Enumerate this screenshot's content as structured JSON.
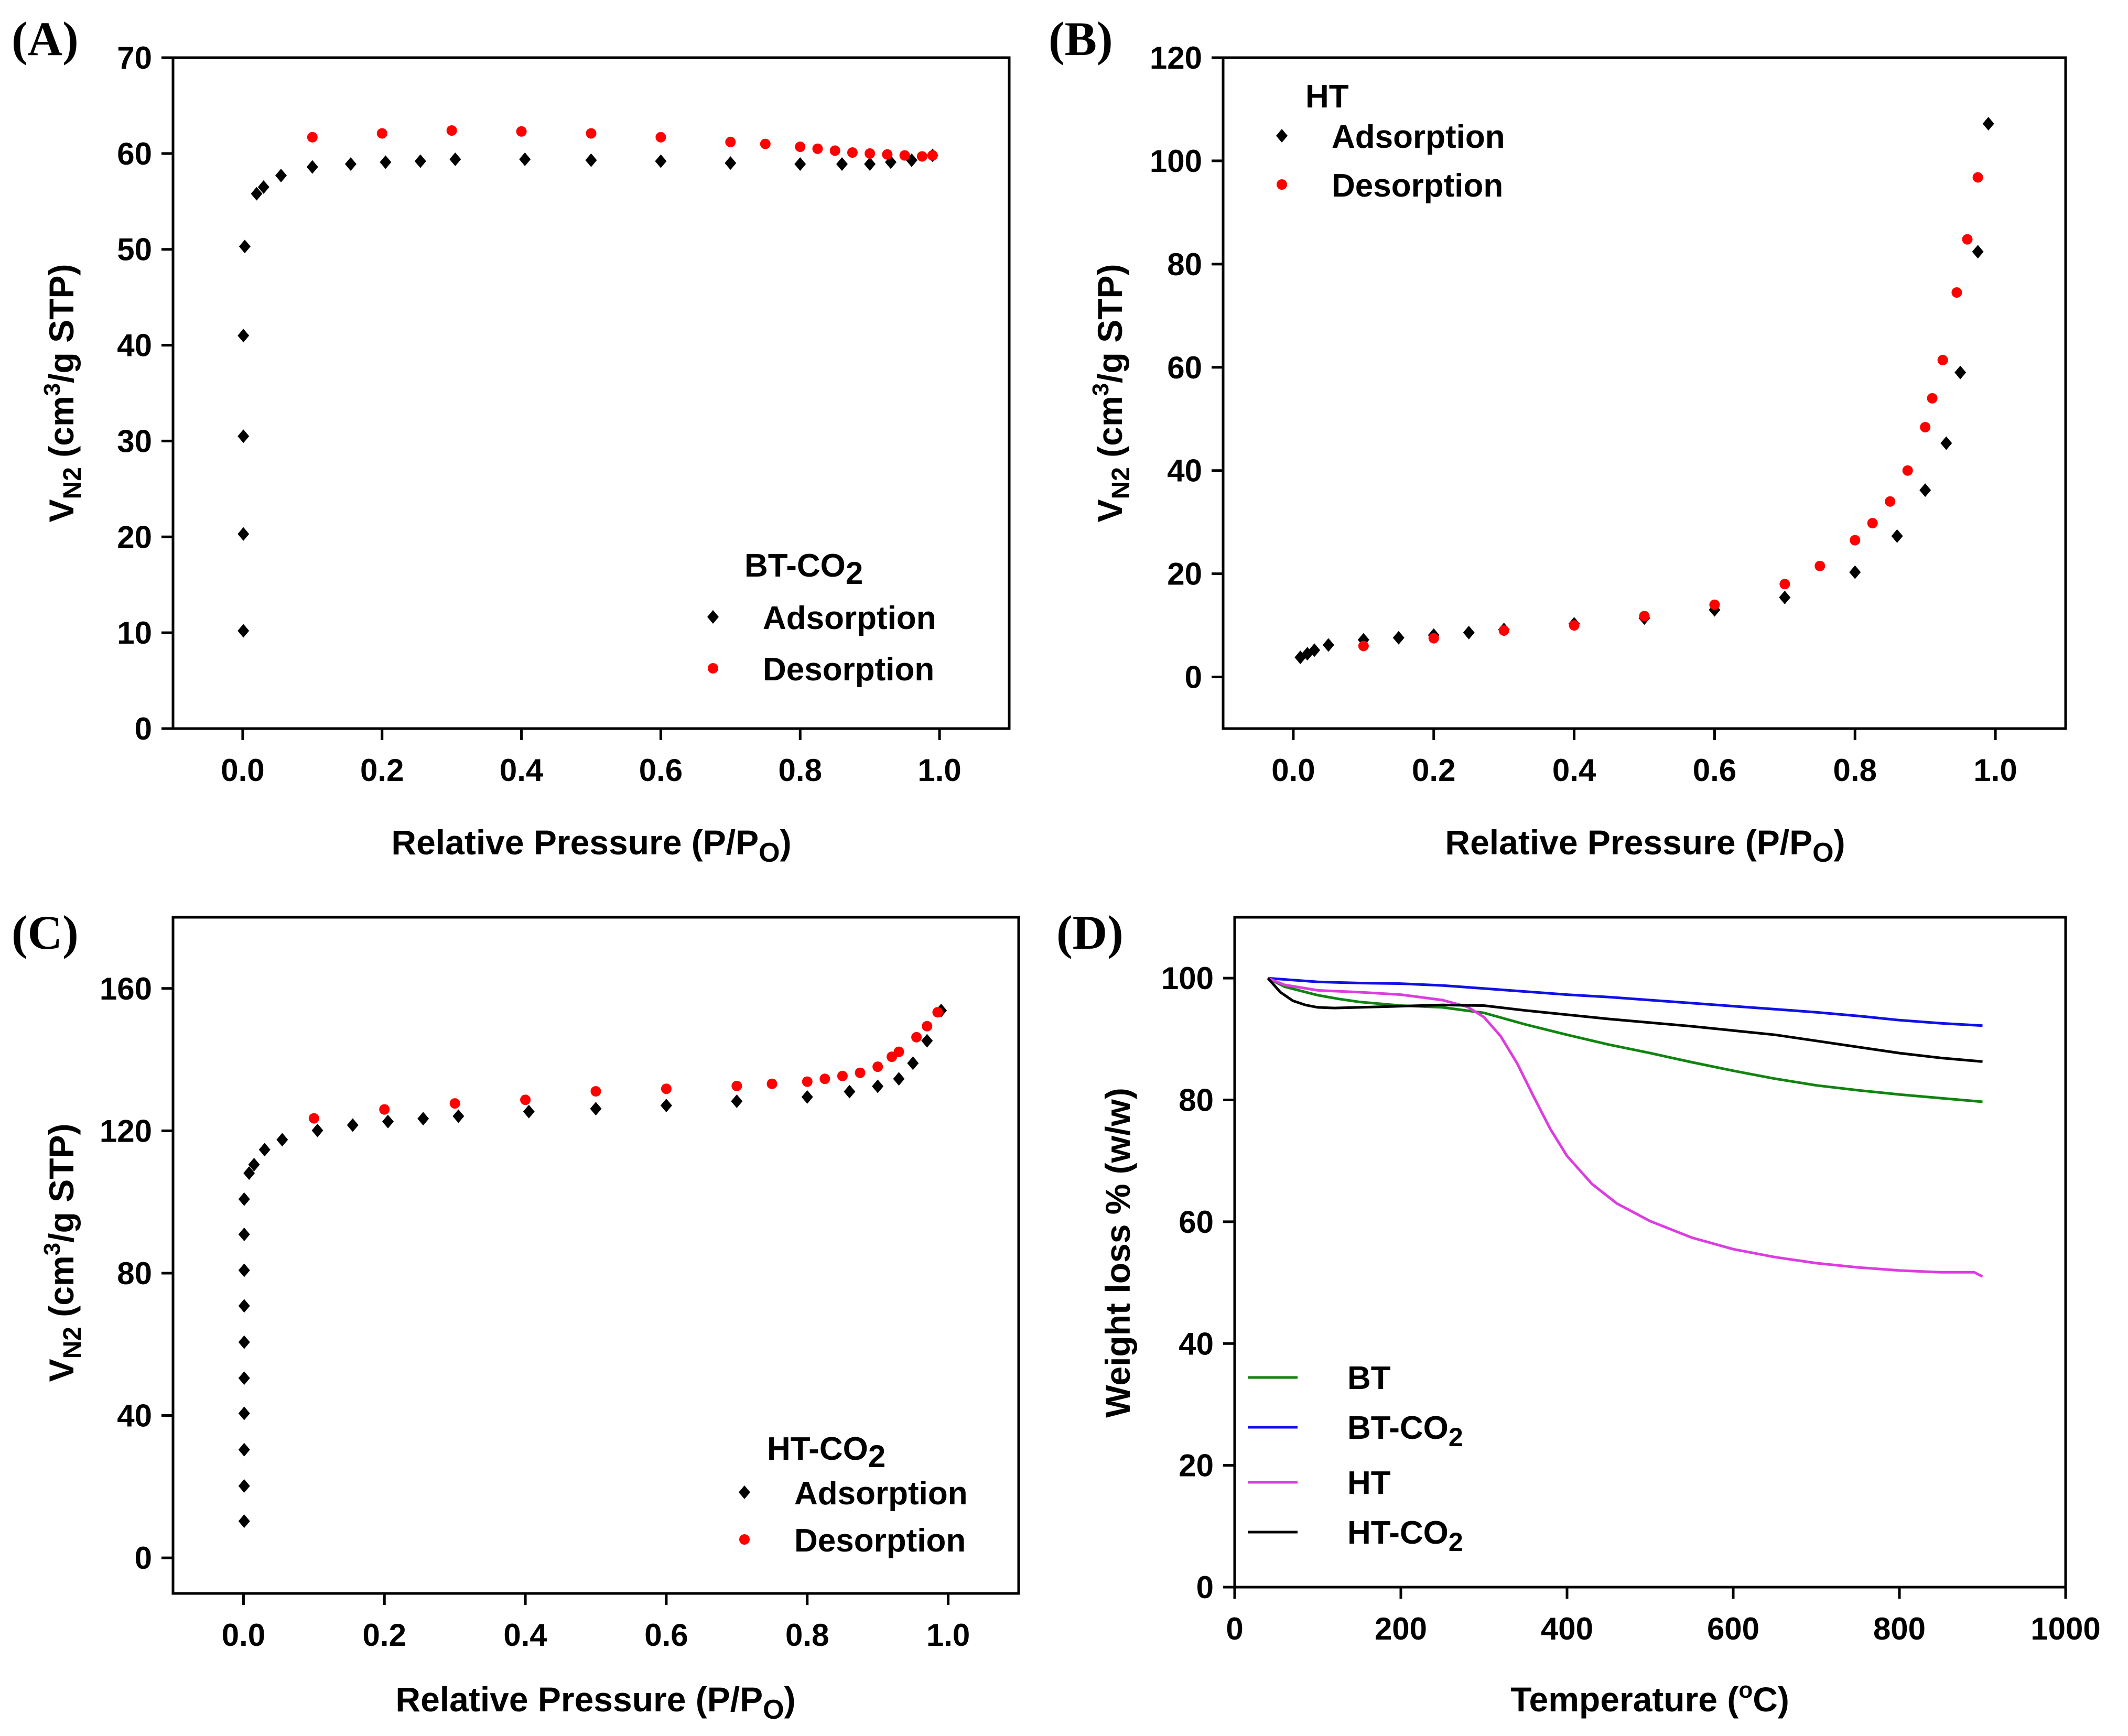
{
  "chart_data": [
    {
      "panel_label": "(A)",
      "type": "scatter",
      "xlabel": "Relative Pressure (P/P",
      "xlabel_sub": "O",
      "xlabel_end": ")",
      "ylabel_base": "V",
      "ylabel_sub": "N2",
      "ylabel_unit": " (cm",
      "ylabel_sup": "3",
      "ylabel_end": "/g STP)",
      "xlim": [
        -0.1,
        1.1
      ],
      "ylim": [
        0,
        70
      ],
      "xticks": [
        0.0,
        0.2,
        0.4,
        0.6,
        0.8,
        1.0
      ],
      "xtick_labels": [
        "0.0",
        "0.2",
        "0.4",
        "0.6",
        "0.8",
        "1.0"
      ],
      "yticks": [
        0,
        10,
        20,
        30,
        40,
        50,
        60,
        70
      ],
      "ytick_labels": [
        "0",
        "10",
        "20",
        "30",
        "40",
        "50",
        "60",
        "70"
      ],
      "legend_title": "BT-CO",
      "legend_title_sub": "2",
      "legend_position": "lower-right",
      "series": [
        {
          "name": "Adsorption",
          "color": "#000000",
          "x": [
            0.001,
            0.001,
            0.001,
            0.001,
            0.003,
            0.02,
            0.03,
            0.055,
            0.1,
            0.155,
            0.205,
            0.255,
            0.305,
            0.405,
            0.5,
            0.6,
            0.7,
            0.8,
            0.86,
            0.9,
            0.93,
            0.96,
            0.99
          ],
          "y": [
            10.2,
            20.3,
            30.5,
            41,
            50.3,
            55.8,
            56.5,
            57.7,
            58.6,
            58.9,
            59.1,
            59.2,
            59.4,
            59.4,
            59.3,
            59.2,
            59,
            58.9,
            58.9,
            58.9,
            59.1,
            59.3,
            59.8
          ]
        },
        {
          "name": "Desorption",
          "color": "#ff0000",
          "x": [
            0.1,
            0.2,
            0.3,
            0.4,
            0.5,
            0.6,
            0.7,
            0.75,
            0.8,
            0.825,
            0.85,
            0.875,
            0.9,
            0.925,
            0.95,
            0.975,
            0.99
          ],
          "y": [
            61.7,
            62.1,
            62.4,
            62.3,
            62.1,
            61.7,
            61.2,
            61,
            60.7,
            60.5,
            60.3,
            60.1,
            60,
            59.9,
            59.8,
            59.7,
            59.8
          ]
        }
      ]
    },
    {
      "panel_label": "(B)",
      "type": "scatter",
      "xlabel": "Relative Pressure (P/P",
      "xlabel_sub": "O",
      "xlabel_end": ")",
      "ylabel_base": "V",
      "ylabel_sub": "N2",
      "ylabel_unit": " (cm",
      "ylabel_sup": "3",
      "ylabel_end": "/g STP)",
      "xlim": [
        -0.1,
        1.1
      ],
      "ylim": [
        -10,
        120
      ],
      "xticks": [
        0.0,
        0.2,
        0.4,
        0.6,
        0.8,
        1.0
      ],
      "xtick_labels": [
        "0.0",
        "0.2",
        "0.4",
        "0.6",
        "0.8",
        "1.0"
      ],
      "yticks": [
        0,
        20,
        40,
        60,
        80,
        100,
        120
      ],
      "ytick_labels": [
        "0",
        "20",
        "40",
        "60",
        "80",
        "100",
        "120"
      ],
      "legend_title": "HT",
      "legend_title_sub": "",
      "legend_position": "upper-left",
      "series": [
        {
          "name": "Adsorption",
          "color": "#000000",
          "x": [
            0.01,
            0.02,
            0.03,
            0.05,
            0.1,
            0.15,
            0.2,
            0.25,
            0.3,
            0.4,
            0.5,
            0.6,
            0.7,
            0.8,
            0.86,
            0.9,
            0.93,
            0.95,
            0.975,
            0.99
          ],
          "y": [
            3.8,
            4.5,
            5.2,
            6.2,
            7.2,
            7.6,
            8.1,
            8.6,
            9.2,
            10.3,
            11.4,
            13,
            15.4,
            20.3,
            27.3,
            36.2,
            45.3,
            59,
            82.4,
            107.2
          ]
        },
        {
          "name": "Desorption",
          "color": "#ff0000",
          "x": [
            0.1,
            0.2,
            0.3,
            0.4,
            0.5,
            0.6,
            0.7,
            0.75,
            0.8,
            0.825,
            0.85,
            0.875,
            0.9,
            0.91,
            0.925,
            0.945,
            0.96,
            0.975
          ],
          "y": [
            6,
            7.5,
            9,
            10,
            11.8,
            14,
            18,
            21.5,
            26.5,
            29.8,
            34,
            40,
            48.4,
            54,
            61.4,
            74.5,
            84.8,
            96.8
          ]
        }
      ]
    },
    {
      "panel_label": "(C)",
      "type": "scatter",
      "xlabel": "Relative Pressure (P/P",
      "xlabel_sub": "O",
      "xlabel_end": ")",
      "ylabel_base": "V",
      "ylabel_sub": "N2",
      "ylabel_unit": " (cm",
      "ylabel_sup": "3",
      "ylabel_end": "/g STP)",
      "xlim": [
        -0.1,
        1.1
      ],
      "ylim": [
        -10,
        180
      ],
      "xticks": [
        0.0,
        0.2,
        0.4,
        0.6,
        0.8,
        1.0
      ],
      "xtick_labels": [
        "0.0",
        "0.2",
        "0.4",
        "0.6",
        "0.8",
        "1.0"
      ],
      "yticks": [
        0,
        40,
        80,
        120,
        160
      ],
      "ytick_labels": [
        "0",
        "40",
        "80",
        "120",
        "160"
      ],
      "legend_title": "HT-CO",
      "legend_title_sub": "2",
      "legend_position": "lower-right",
      "series": [
        {
          "name": "Adsorption",
          "color": "#000000",
          "x": [
            0.001,
            0.001,
            0.001,
            0.001,
            0.001,
            0.001,
            0.001,
            0.001,
            0.001,
            0.001,
            0.008,
            0.015,
            0.03,
            0.055,
            0.105,
            0.155,
            0.205,
            0.255,
            0.305,
            0.405,
            0.5,
            0.6,
            0.7,
            0.8,
            0.86,
            0.9,
            0.93,
            0.95,
            0.97,
            0.99
          ],
          "y": [
            10.3,
            20.2,
            30.4,
            40.6,
            50.5,
            60.6,
            70.8,
            80.8,
            90.9,
            100.8,
            108.1,
            110.5,
            114.7,
            117.5,
            120.1,
            121.6,
            122.6,
            123.4,
            124.1,
            125.4,
            126.2,
            127.1,
            128.3,
            129.5,
            131,
            132.5,
            134.6,
            139,
            145.3,
            153.8
          ]
        },
        {
          "name": "Desorption",
          "color": "#ff0000",
          "x": [
            0.1,
            0.2,
            0.3,
            0.4,
            0.5,
            0.6,
            0.7,
            0.75,
            0.8,
            0.825,
            0.85,
            0.875,
            0.9,
            0.92,
            0.93,
            0.955,
            0.97,
            0.985
          ],
          "y": [
            123.5,
            126,
            127.7,
            128.7,
            131.1,
            131.8,
            132.6,
            133.2,
            133.8,
            134.6,
            135.4,
            136.3,
            138,
            140.8,
            142.2,
            146.3,
            149.4,
            153.3
          ]
        }
      ]
    },
    {
      "panel_label": "(D)",
      "type": "line",
      "xlabel": "Temperature (",
      "xlabel_sup": "o",
      "xlabel_end": "C)",
      "ylabel": "Weight loss % (w/w)",
      "xlim": [
        0,
        1000
      ],
      "ylim": [
        0,
        110
      ],
      "xticks": [
        0,
        200,
        400,
        600,
        800,
        1000
      ],
      "xtick_labels": [
        "0",
        "200",
        "400",
        "600",
        "800",
        "1000"
      ],
      "yticks": [
        0,
        20,
        40,
        60,
        80,
        100
      ],
      "ytick_labels": [
        "0",
        "20",
        "40",
        "60",
        "80",
        "100"
      ],
      "legend_position": "lower-left",
      "series": [
        {
          "name": "BT",
          "name_sub": "",
          "color": "#108410",
          "x": [
            40,
            60,
            80,
            100,
            125,
            150,
            200,
            250,
            300,
            350,
            400,
            450,
            500,
            550,
            600,
            650,
            700,
            750,
            800,
            850,
            900
          ],
          "y": [
            100,
            98.6,
            97.9,
            97.2,
            96.6,
            96.1,
            95.5,
            95.2,
            94.3,
            92.4,
            90.7,
            89.1,
            87.7,
            86.2,
            84.8,
            83.5,
            82.4,
            81.6,
            80.9,
            80.3,
            79.7
          ]
        },
        {
          "name": "BT-CO",
          "name_sub": "2",
          "color": "#1010e6",
          "x": [
            40,
            100,
            150,
            200,
            250,
            300,
            350,
            400,
            450,
            500,
            550,
            600,
            650,
            700,
            750,
            800,
            850,
            900
          ],
          "y": [
            100,
            99.4,
            99.2,
            99.1,
            98.8,
            98.3,
            97.8,
            97.3,
            96.9,
            96.4,
            95.9,
            95.4,
            94.9,
            94.4,
            93.8,
            93.1,
            92.6,
            92.2
          ]
        },
        {
          "name": "HT",
          "name_sub": "",
          "color": "#dc3ce0",
          "x": [
            40,
            60,
            100,
            150,
            200,
            250,
            280,
            300,
            320,
            340,
            360,
            380,
            400,
            430,
            460,
            500,
            550,
            600,
            650,
            700,
            750,
            800,
            850,
            890,
            900
          ],
          "y": [
            100,
            98.9,
            98,
            97.7,
            97.3,
            96.4,
            95.3,
            93.6,
            90.5,
            86,
            80.5,
            75.2,
            70.8,
            66.2,
            63,
            60.1,
            57.4,
            55.5,
            54.2,
            53.2,
            52.5,
            52,
            51.7,
            51.7,
            51
          ]
        },
        {
          "name": "HT-CO",
          "name_sub": "2",
          "color": "#000000",
          "x": [
            40,
            55,
            70,
            85,
            100,
            120,
            150,
            200,
            250,
            300,
            350,
            400,
            450,
            500,
            550,
            600,
            650,
            700,
            750,
            800,
            850,
            900
          ],
          "y": [
            100,
            97.7,
            96.3,
            95.6,
            95.2,
            95.1,
            95.2,
            95.4,
            95.6,
            95.5,
            94.7,
            94,
            93.3,
            92.7,
            92.1,
            91.4,
            90.7,
            89.7,
            88.7,
            87.7,
            86.9,
            86.3
          ]
        }
      ]
    }
  ]
}
